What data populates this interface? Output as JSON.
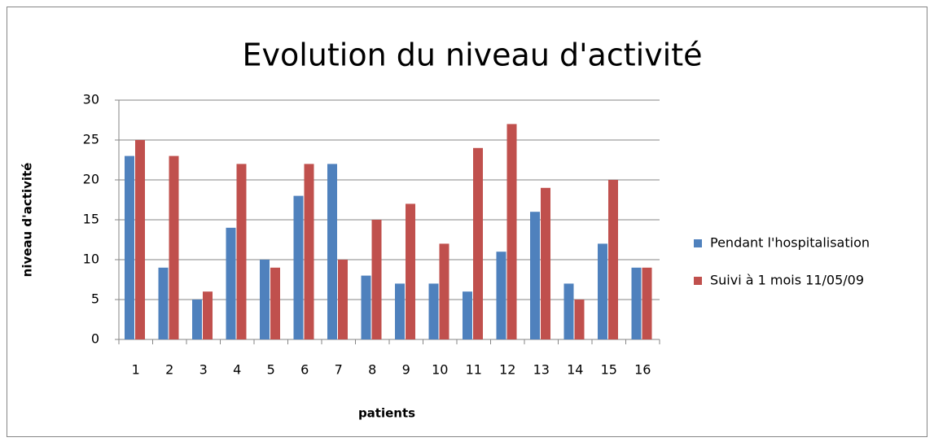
{
  "chart_data": {
    "type": "bar",
    "title": "Evolution du niveau d'activité",
    "x_label": "patients",
    "y_label": "niveau d'activité",
    "categories": [
      "1",
      "2",
      "3",
      "4",
      "5",
      "6",
      "7",
      "8",
      "9",
      "10",
      "11",
      "12",
      "13",
      "14",
      "15",
      "16"
    ],
    "series": [
      {
        "name": "Pendant l'hospitalisation",
        "color": "#4f81bd",
        "values": [
          23,
          9,
          5,
          14,
          10,
          18,
          22,
          8,
          7,
          7,
          6,
          11,
          16,
          7,
          12,
          9
        ]
      },
      {
        "name": "Suivi à 1 mois 11/05/09",
        "color": "#c0504d",
        "values": [
          25,
          23,
          6,
          22,
          9,
          22,
          10,
          15,
          17,
          12,
          24,
          27,
          19,
          5,
          20,
          9
        ]
      }
    ],
    "ylim": [
      0,
      30
    ],
    "yticks": [
      0,
      5,
      10,
      15,
      20,
      25,
      30
    ],
    "grid": true,
    "legend": "right"
  }
}
